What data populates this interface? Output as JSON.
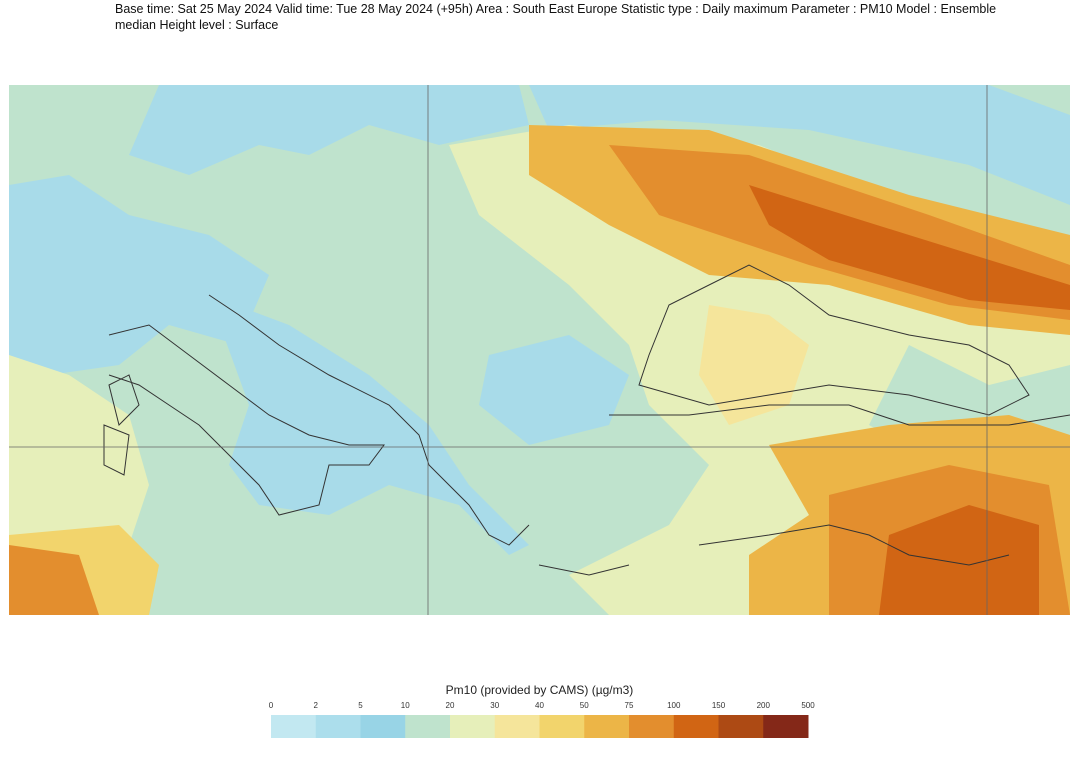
{
  "header": {
    "lines": [
      "Base time: Sat 25 May 2024 Valid time: Tue 28 May 2024 (+95h) Area : South East Europe Statistic type : Daily maximum Parameter : PM10 Model : Ensemble",
      "median Height level : Surface"
    ]
  },
  "legend": {
    "title": "Pm10 (provided by CAMS) (µg/m3)",
    "ticks": [
      0,
      2,
      5,
      10,
      20,
      30,
      40,
      50,
      75,
      100,
      150,
      200,
      500
    ],
    "colors": [
      "#c2e8f1",
      "#acdeec",
      "#98d4e6",
      "#bfe3cd",
      "#e6efba",
      "#f5e59b",
      "#f2d46c",
      "#ecb547",
      "#e38e2e",
      "#d16514",
      "#ad4a14",
      "#842818"
    ]
  }
}
